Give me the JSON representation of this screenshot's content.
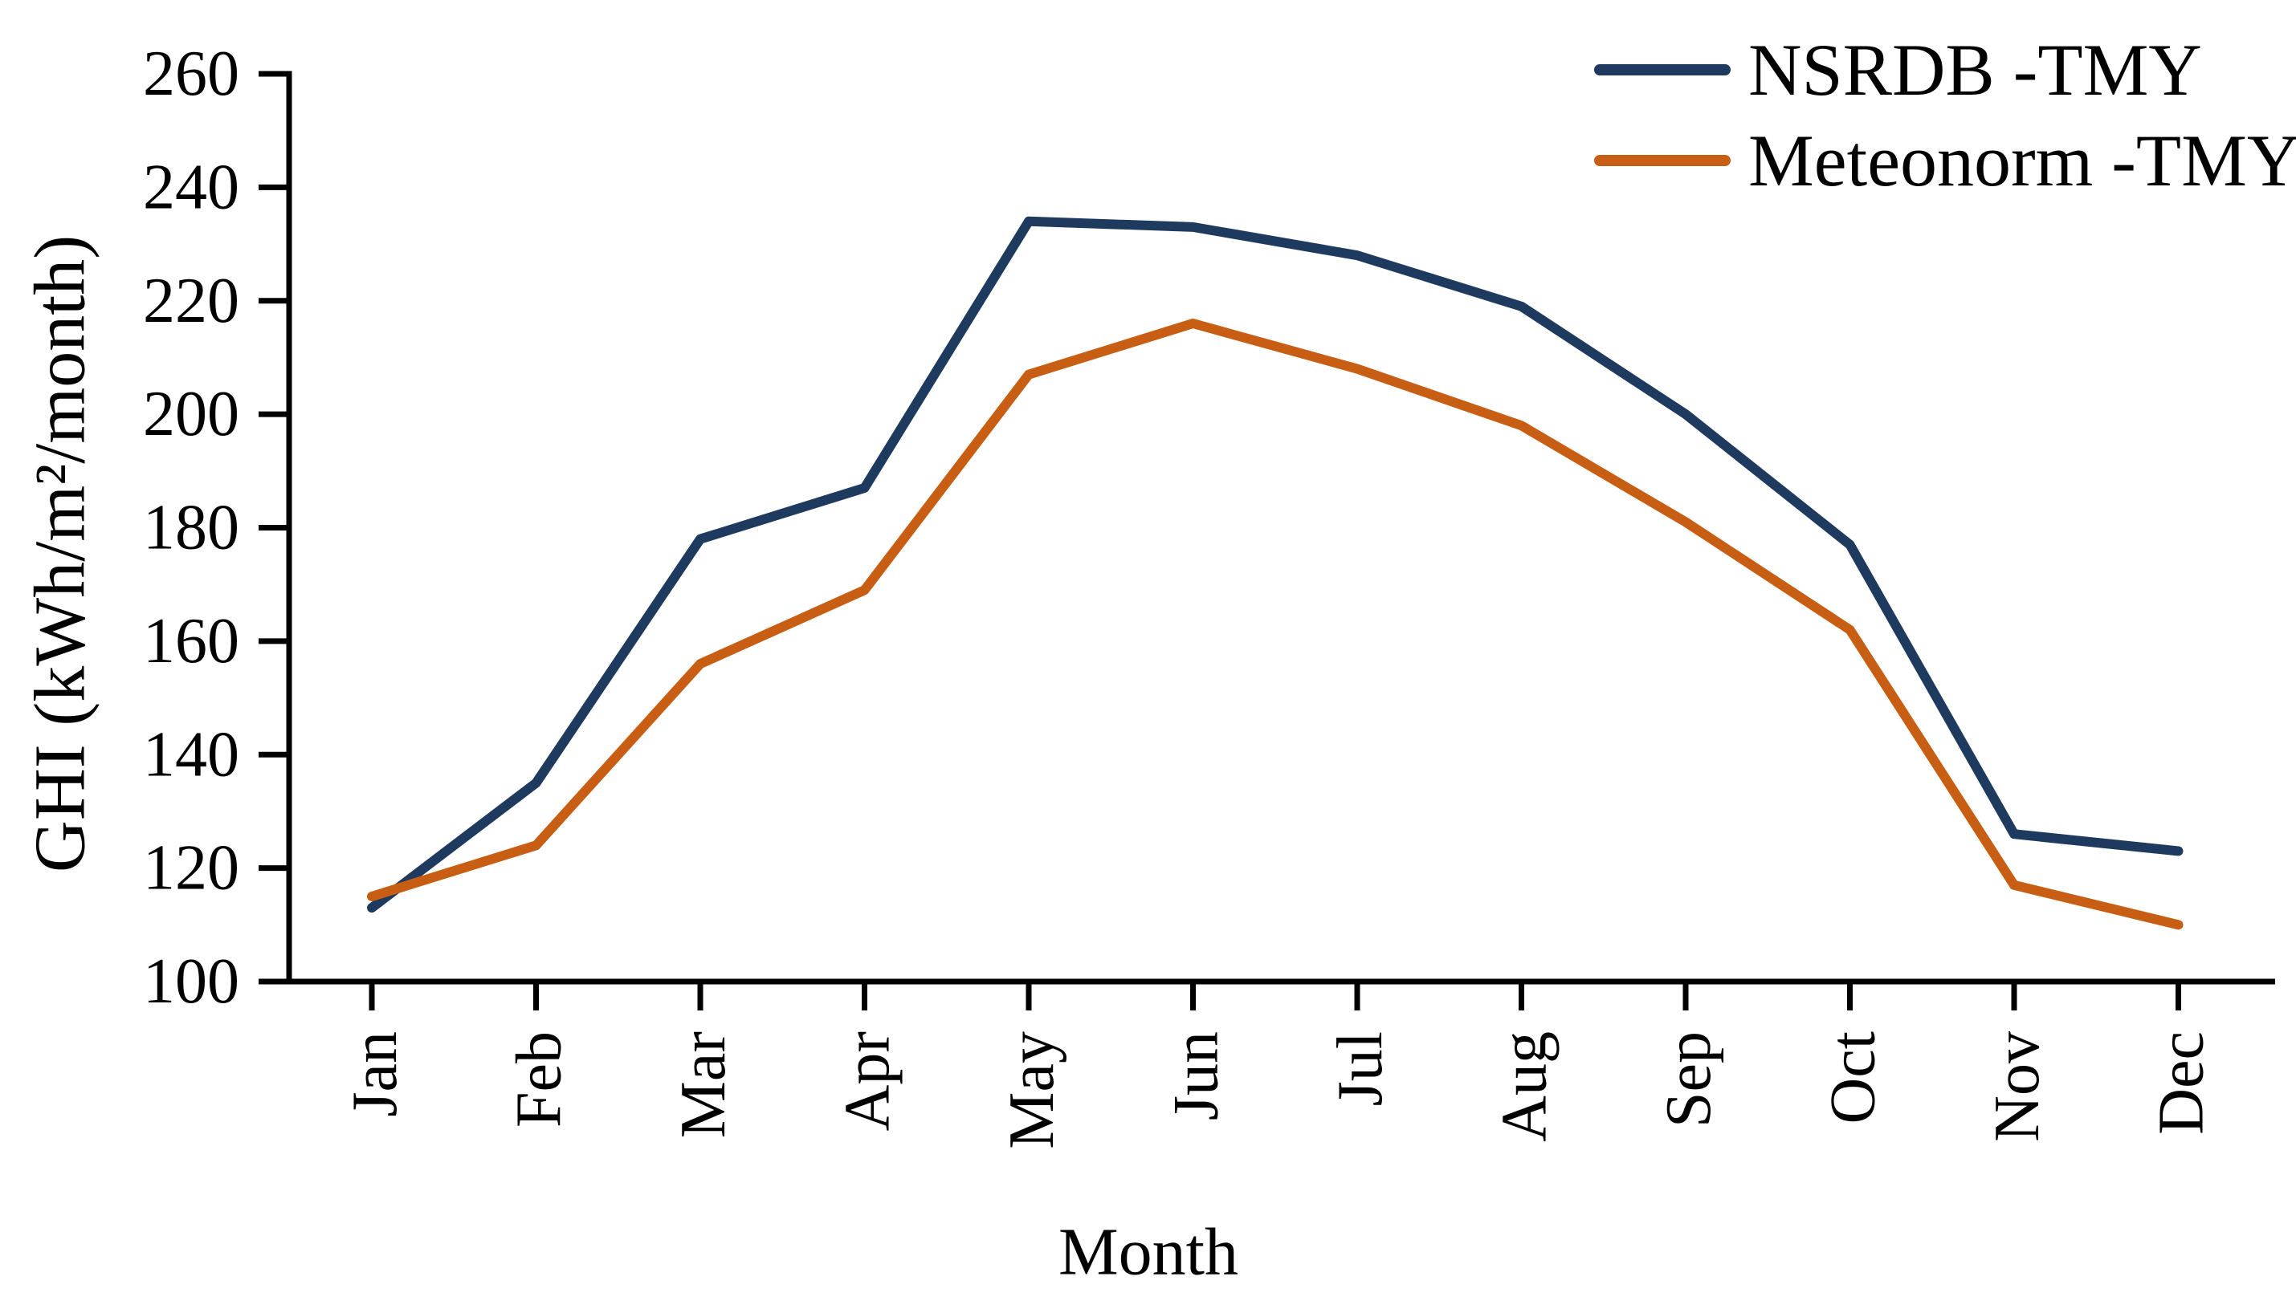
{
  "chart_data": {
    "type": "line",
    "title": "",
    "xlabel": "Month",
    "ylabel": "GHI (kWh/m²/month)",
    "categories": [
      "Jan",
      "Feb",
      "Mar",
      "Apr",
      "May",
      "Jun",
      "Jul",
      "Aug",
      "Sep",
      "Oct",
      "Nov",
      "Dec"
    ],
    "series": [
      {
        "name": "NSRDB -TMY",
        "color": "#1F3A5F",
        "values": [
          113,
          135,
          178,
          187,
          234,
          233,
          228,
          219,
          200,
          177,
          126,
          123
        ]
      },
      {
        "name": "Meteonorm -TMY",
        "color": "#C85E13",
        "values": [
          115,
          124,
          156,
          169,
          207,
          216,
          208,
          198,
          181,
          162,
          117,
          110
        ]
      }
    ],
    "ylim": [
      100,
      260
    ],
    "yticks": [
      100,
      120,
      140,
      160,
      180,
      200,
      220,
      240,
      260
    ],
    "grid": false,
    "legend_position": "top-right",
    "axis_color": "#000000",
    "text_color": "#000000"
  }
}
